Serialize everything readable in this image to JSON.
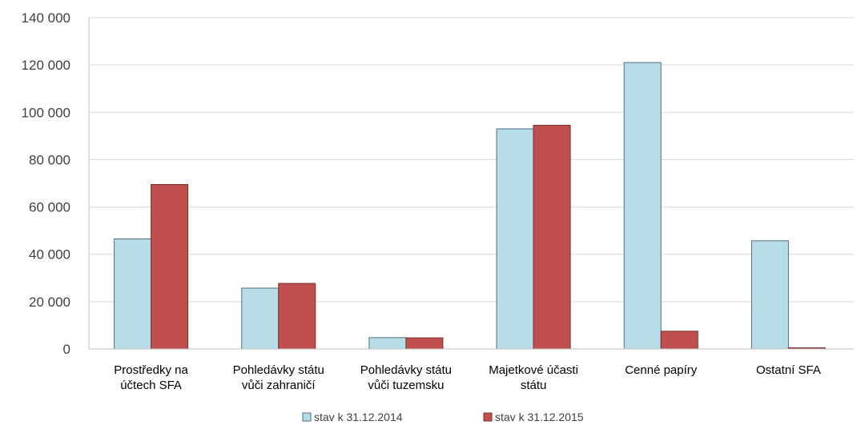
{
  "chart_data": {
    "type": "bar",
    "categories": [
      [
        "Prostředky na",
        "účtech SFA"
      ],
      [
        "Pohledávky státu",
        "vůči zahraničí"
      ],
      [
        "Pohledávky státu",
        "vůči tuzemsku"
      ],
      [
        "Majetkové účasti",
        "státu"
      ],
      [
        "Cenné papíry"
      ],
      [
        "Ostatní SFA"
      ]
    ],
    "series": [
      {
        "name": "stav k 31.12.2014",
        "color": "#b7dde8",
        "stroke": "#4d6f7a",
        "values": [
          46500,
          25700,
          4800,
          93000,
          121000,
          45700
        ]
      },
      {
        "name": "stav k 31.12.2015",
        "color": "#c0504d",
        "stroke": "#7a2f2d",
        "values": [
          69500,
          27700,
          4700,
          94500,
          7500,
          500
        ]
      }
    ],
    "ylim": [
      0,
      140000
    ],
    "yticks": [
      0,
      20000,
      40000,
      60000,
      80000,
      100000,
      120000,
      140000
    ],
    "ytick_labels": [
      "0",
      "20 000",
      "40 000",
      "60 000",
      "80 000",
      "100 000",
      "120 000",
      "140 000"
    ],
    "grid": true,
    "legend_position": "bottom-center"
  }
}
